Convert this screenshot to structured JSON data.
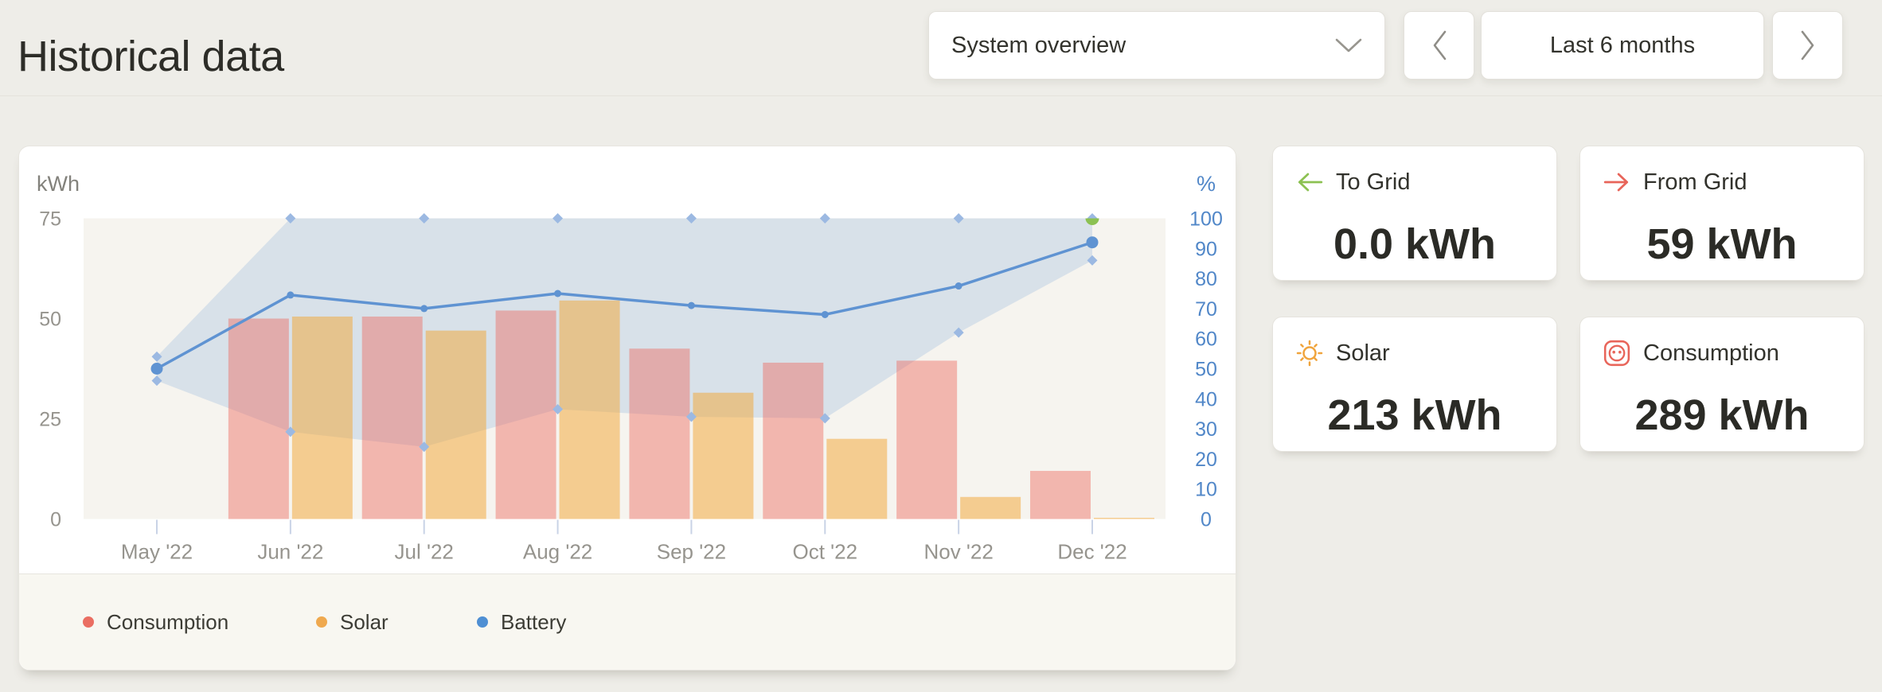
{
  "header": {
    "title": "Historical data",
    "system_select": {
      "value": "System overview"
    },
    "range_button": {
      "label": "Last 6 months"
    }
  },
  "cards": [
    {
      "label": "To Grid",
      "value": "0.0 kWh",
      "icon": "arrow-left-icon",
      "color": "#8cc152"
    },
    {
      "label": "From Grid",
      "value": "59 kWh",
      "icon": "arrow-right-icon",
      "color": "#e8655a"
    },
    {
      "label": "Solar",
      "value": "213 kWh",
      "icon": "sun-icon",
      "color": "#f0a43c"
    },
    {
      "label": "Consumption",
      "value": "289 kWh",
      "icon": "socket-icon",
      "color": "#e8655a"
    }
  ],
  "chart_data": {
    "type": "mixed-bar-line-band",
    "categories": [
      "May '22",
      "Jun '22",
      "Jul '22",
      "Aug '22",
      "Sep '22",
      "Oct '22",
      "Nov '22",
      "Dec '22"
    ],
    "left_axis": {
      "label": "kWh",
      "ticks": [
        0,
        25,
        50,
        75
      ],
      "max": 75
    },
    "right_axis": {
      "label": "%",
      "ticks": [
        0,
        10,
        20,
        30,
        40,
        50,
        60,
        70,
        80,
        90,
        100
      ],
      "max": 100
    },
    "series": [
      {
        "name": "Consumption",
        "type": "bar",
        "axis": "left",
        "fill": "rgba(238,106,95,0.45)",
        "legend_color": "#ea6e62",
        "values": [
          null,
          50,
          50.5,
          52,
          42.5,
          39,
          39.5,
          12
        ]
      },
      {
        "name": "Solar",
        "type": "bar",
        "axis": "left",
        "fill": "rgba(242,166,58,0.52)",
        "legend_color": "#efa94f",
        "values": [
          null,
          50.5,
          47,
          54.5,
          31.5,
          20,
          5.5,
          0.3
        ]
      },
      {
        "name": "Battery",
        "type": "line",
        "axis": "right",
        "stroke": "#5f93d2",
        "legend_color": "#4f8fd3",
        "values": [
          50,
          74.5,
          70,
          75,
          71,
          68,
          77.5,
          92
        ]
      },
      {
        "name": "Battery min/max",
        "type": "band",
        "axis": "right",
        "fill": "rgba(127,166,216,0.25)",
        "marker_color": "#9cb9e2",
        "min": [
          46,
          29,
          24,
          36.5,
          34,
          33.5,
          62,
          86
        ],
        "max": [
          54,
          100,
          100,
          100,
          100,
          100,
          100,
          100
        ]
      }
    ],
    "special_markers": [
      {
        "category": "Dec '22",
        "value": 100,
        "axis": "right",
        "color": "#8cc152"
      }
    ],
    "legend": [
      {
        "label": "Consumption",
        "color": "#ea6e62"
      },
      {
        "label": "Solar",
        "color": "#efa94f"
      },
      {
        "label": "Battery",
        "color": "#4f8fd3"
      }
    ]
  },
  "colors": {
    "page_bg": "#eeede8",
    "card_bg": "#ffffff",
    "plot_bg": "#f6f4ef",
    "footer_bg": "#f8f7f1",
    "axis_text": "#96948e",
    "right_axis_text": "#5187c8"
  }
}
